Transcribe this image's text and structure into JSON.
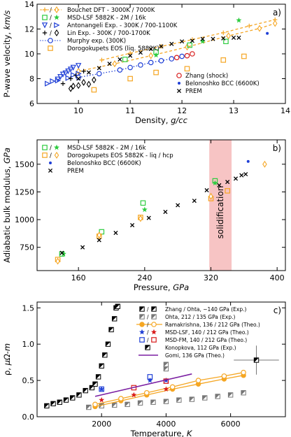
{
  "chart_data": [
    {
      "type": "scatter",
      "panel_label": "a)",
      "ylabel": "P-wave velocity, ",
      "ylabel_unit": "km/s",
      "xlabel": "Density, ",
      "xlabel_unit": "g/cc",
      "xlim": [
        9.2,
        14.0
      ],
      "ylim": [
        6,
        14
      ],
      "xticks": [
        10,
        11,
        12,
        13,
        14
      ],
      "yticks": [
        6,
        8,
        10,
        12,
        14
      ],
      "legend_left": [
        "Bouchet DFT - 3000K / 7000K",
        "MSD-LSF 5882K - 2M / 16k",
        "Antonangeli Exp. - 300K / 700-1100K",
        "Lin Exp. - 300K / 700-1700K",
        "Murphy exp. (300K)",
        "Dorogokupets EOS (liq. 5882K)"
      ],
      "legend_right": [
        "Zhang (shock)",
        "Belonoshko BCC (6600K)",
        "PREM"
      ],
      "series": [
        {
          "name": "Bouchet DFT - 3000K / 7000K",
          "marker": "plus-line",
          "color": "#f5a623",
          "x": [
            10.45,
            11.0,
            11.6,
            12.2,
            12.8,
            13.3,
            13.8
          ],
          "y": [
            9.5,
            10.05,
            10.6,
            11.15,
            11.7,
            12.25,
            12.75
          ]
        },
        {
          "name": "Bouchet DFT - 7000K",
          "marker": "open-diamond-line",
          "color": "#f5a623",
          "x": [
            10.0,
            10.7,
            11.4,
            12.1,
            12.9,
            13.5,
            13.8
          ],
          "y": [
            8.6,
            9.2,
            9.85,
            10.55,
            11.45,
            12.05,
            12.45
          ]
        },
        {
          "name": "MSD-LSF 2M",
          "marker": "open-square",
          "color": "#2ecc40",
          "x": [
            10.9,
            11.5,
            12.15,
            12.85
          ],
          "y": [
            9.55,
            10.15,
            10.7,
            11.0
          ]
        },
        {
          "name": "MSD-LSF 16k",
          "marker": "star",
          "color": "#2ecc40",
          "x": [
            11.5,
            12.4,
            13.1
          ],
          "y": [
            9.9,
            11.0,
            12.7
          ]
        },
        {
          "name": "Antonangeli 300K",
          "marker": "triangle-down",
          "color": "#1f3fd6",
          "x": [
            9.6,
            9.65,
            9.7,
            9.75,
            9.8,
            9.85,
            9.9,
            10.0
          ],
          "y": [
            7.95,
            8.15,
            8.35,
            8.45,
            8.6,
            8.75,
            8.9,
            9.05
          ]
        },
        {
          "name": "Antonangeli 700-1100K",
          "marker": "triangle-right",
          "color": "#1f3fd6",
          "x": [
            9.4,
            9.5,
            9.6,
            9.8,
            9.9,
            10.0
          ],
          "y": [
            7.6,
            7.8,
            7.85,
            8.05,
            8.3,
            8.4
          ]
        },
        {
          "name": "Lin 300K",
          "marker": "plus",
          "color": "#000000",
          "x": [
            9.7,
            9.85,
            9.95,
            10.1
          ],
          "y": [
            7.6,
            8.0,
            8.25,
            8.6
          ]
        },
        {
          "name": "Lin 700-1700K",
          "marker": "open-diamond",
          "color": "#000000",
          "x": [
            9.85,
            9.9,
            10.0,
            10.1,
            10.2,
            10.3
          ],
          "y": [
            7.2,
            7.4,
            7.45,
            7.7,
            7.55,
            7.9
          ]
        },
        {
          "name": "Murphy exp. (300K)",
          "marker": "open-circle-dotted",
          "color": "#1f3fd6",
          "x": [
            10.0,
            10.4,
            10.8,
            11.0,
            11.2,
            11.4,
            11.6,
            11.8,
            12.0
          ],
          "y": [
            8.1,
            8.4,
            8.7,
            8.9,
            9.1,
            9.3,
            9.45,
            9.6,
            9.8
          ]
        },
        {
          "name": "Dorogokupets EOS (liq. 5882K)",
          "marker": "open-square",
          "color": "#f5a623",
          "x": [
            10.3,
            11.0,
            11.5,
            12.1,
            12.8,
            13.2
          ],
          "y": [
            7.1,
            8.0,
            8.5,
            8.8,
            9.5,
            9.8
          ]
        },
        {
          "name": "Zhang (shock)",
          "marker": "open-circle",
          "color": "#d81b1b",
          "x": [
            11.9,
            12.1,
            12.2
          ],
          "y": [
            9.7,
            9.85,
            10.0
          ]
        },
        {
          "name": "Belonoshko BCC (6600K)",
          "marker": "dot",
          "color": "#1f3fd6",
          "x": [
            13.65
          ],
          "y": [
            11.65
          ]
        },
        {
          "name": "PREM",
          "marker": "cross",
          "color": "#000000",
          "x": [
            10.0,
            10.2,
            10.4,
            10.6,
            10.8,
            11.0,
            11.2,
            11.4,
            11.6,
            11.8,
            12.0,
            12.2,
            12.4,
            12.6,
            12.8,
            13.0,
            13.1
          ],
          "y": [
            8.0,
            8.5,
            8.85,
            9.2,
            9.55,
            9.85,
            10.1,
            10.4,
            10.6,
            10.8,
            11.0,
            11.05,
            11.2,
            11.2,
            11.25,
            11.3,
            11.3
          ]
        }
      ]
    },
    {
      "type": "scatter",
      "panel_label": "b)",
      "ylabel": "Adiabatic bulk modulus, ",
      "ylabel_unit": "GPa",
      "xlabel": "Pressure, ",
      "xlabel_unit": "GPa",
      "xlim": [
        110,
        410
      ],
      "ylim": [
        540,
        1720
      ],
      "xticks": [
        160,
        240,
        320,
        400
      ],
      "yticks": [
        500,
        750,
        1000,
        1250,
        1500
      ],
      "yticks_shown": [
        750,
        1000,
        1250,
        1500
      ],
      "band": {
        "from": 318,
        "to": 345,
        "label": "solidification",
        "color": "#f7c4c4"
      },
      "legend": [
        "MSD-LSF 5882K - 2M / 16k",
        "Dorogokupets EOS 5882K - liq / hcp",
        "Belonoshko BCC (6600K)",
        "PREM"
      ],
      "series": [
        {
          "name": "MSD-LSF 2M",
          "marker": "open-square",
          "color": "#2ecc40",
          "x": [
            140,
            188,
            238,
            325
          ],
          "y": [
            690,
            890,
            1150,
            1350
          ]
        },
        {
          "name": "MSD-LSF 16k",
          "marker": "star",
          "color": "#2ecc40",
          "x": [
            142,
            240,
            325
          ],
          "y": [
            690,
            1090,
            1330
          ]
        },
        {
          "name": "Dorogokupets liq",
          "marker": "open-square",
          "color": "#f5a623",
          "x": [
            135,
            185,
            235,
            320,
            340
          ],
          "y": [
            640,
            850,
            1020,
            1190,
            1260
          ]
        },
        {
          "name": "Dorogokupets hcp",
          "marker": "open-diamond",
          "color": "#f5a623",
          "x": [
            135,
            185,
            235,
            320,
            385
          ],
          "y": [
            625,
            860,
            1010,
            1210,
            1500
          ]
        },
        {
          "name": "Belonoshko BCC (6600K)",
          "marker": "dot",
          "color": "#1f3fd6",
          "x": [
            365
          ],
          "y": [
            1525
          ]
        },
        {
          "name": "PREM",
          "marker": "cross",
          "color": "#000000",
          "x": [
            140,
            165,
            185,
            205,
            225,
            245,
            265,
            280,
            300,
            315,
            330,
            340,
            350,
            357,
            362
          ],
          "y": [
            700,
            750,
            815,
            880,
            950,
            1015,
            1070,
            1130,
            1170,
            1265,
            1310,
            1340,
            1370,
            1400,
            1410
          ]
        }
      ]
    },
    {
      "type": "scatter",
      "panel_label": "c)",
      "ylabel": "ρ, ",
      "ylabel_unit": "μΩ-m",
      "xlabel": "Temperature, ",
      "xlabel_unit": "K",
      "xlim": [
        0,
        7700
      ],
      "ylim": [
        0,
        1.58
      ],
      "xticks": [
        2000,
        4000,
        6000
      ],
      "yticks": [
        0.0,
        0.5,
        1.0,
        1.5
      ],
      "legend": [
        "Zhang / Ohta, ~140 GPa (Exp.)",
        "Ohta, 212 / 135 GPa (Exp.)",
        "Ramakrishna, 136 / 212 GPa (Theo.)",
        "MSD-LSF, 140 / 212 GPa (Theo.)",
        "MSD-FM, 140 / 212 GPa (Theo.)",
        "Konopkova, 112 GPa (Exp.)",
        "Gomi, 136 GPa (Theo.)"
      ],
      "series": [
        {
          "name": "Zhang / Ohta, ~140 GPa (Exp.)",
          "marker": "half-square",
          "color": "#000000",
          "x": [
            300,
            500,
            700,
            900,
            1100,
            1300,
            1500,
            1700,
            1800,
            1900,
            2000,
            2100,
            2200,
            2300,
            2400,
            2450,
            2500
          ],
          "y": [
            0.15,
            0.18,
            0.2,
            0.23,
            0.26,
            0.3,
            0.36,
            0.4,
            0.45,
            0.55,
            0.7,
            0.85,
            1.0,
            1.2,
            1.35,
            1.5,
            1.52
          ]
        },
        {
          "name": "Ohta, 212 / 135 GPa (Exp.)",
          "marker": "half-square-grey",
          "color": "#777777",
          "x": [
            1600,
            2000,
            2400,
            2800,
            3200,
            3600,
            4000,
            4400,
            4800,
            5200,
            5600,
            6000,
            6400
          ],
          "y": [
            0.13,
            0.15,
            0.16,
            0.17,
            0.19,
            0.2,
            0.21,
            0.23,
            0.24,
            0.26,
            0.28,
            0.3,
            0.33
          ]
        },
        {
          "name": "Ohta high-T",
          "marker": "half-square-grey",
          "color": "#777777",
          "x": [
            4000,
            4000
          ],
          "y": [
            0.66,
            0.72
          ]
        },
        {
          "name": "Ramakrishna 136 GPa",
          "marker": "filled-circle-line",
          "color": "#f5a623",
          "x": [
            1800,
            2600,
            3400,
            4200,
            5000,
            5800,
            6400
          ],
          "y": [
            0.14,
            0.22,
            0.3,
            0.38,
            0.45,
            0.52,
            0.57
          ]
        },
        {
          "name": "Ramakrishna 212 GPa",
          "marker": "open-circle-line",
          "color": "#f5a623",
          "x": [
            1800,
            2600,
            3400,
            4200,
            5000,
            5800,
            6400
          ],
          "y": [
            0.17,
            0.25,
            0.33,
            0.41,
            0.5,
            0.56,
            0.61
          ]
        },
        {
          "name": "MSD-LSF 140 GPa",
          "marker": "star",
          "color": "#1f3fd6",
          "x": [
            2000,
            3500,
            4000
          ],
          "y": [
            0.38,
            0.5,
            0.5
          ]
        },
        {
          "name": "MSD-LSF 212 GPa",
          "marker": "star",
          "color": "#d81b1b",
          "x": [
            2000,
            3000,
            4000
          ],
          "y": [
            0.23,
            0.3,
            0.38
          ]
        },
        {
          "name": "MSD-FM 140 GPa",
          "marker": "open-square",
          "color": "#1f3fd6",
          "x": [
            2000,
            3500
          ],
          "y": [
            0.38,
            0.55
          ]
        },
        {
          "name": "MSD-FM 212 GPa",
          "marker": "open-square",
          "color": "#d81b1b",
          "x": [
            3000,
            4000
          ],
          "y": [
            0.4,
            0.49
          ]
        },
        {
          "name": "Konopkova, 112 GPa (Exp.)",
          "marker": "half-square",
          "color": "#000000",
          "x": [
            6800
          ],
          "y": [
            0.78
          ],
          "xerr": 700,
          "yerr": 0.2
        },
        {
          "name": "Gomi, 136 GPa (Theo.)",
          "marker": "line",
          "color": "#7b1fa2",
          "x": [
            1800,
            4800
          ],
          "y": [
            0.28,
            0.59
          ]
        }
      ]
    }
  ]
}
